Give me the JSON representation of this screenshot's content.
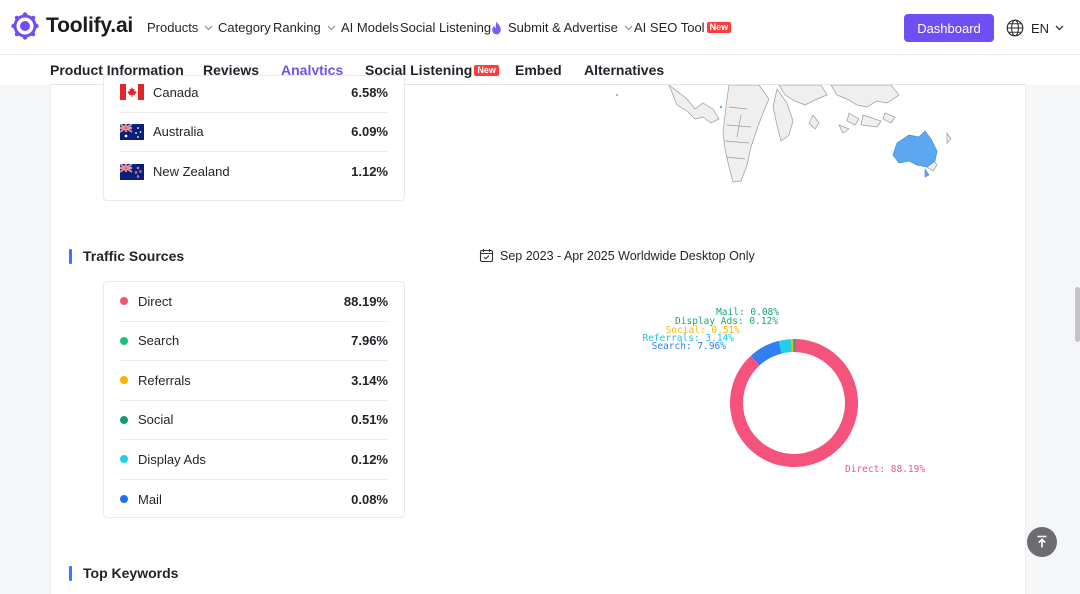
{
  "nav": {
    "logo_text": "Toolify.ai",
    "items": [
      {
        "label": "Products",
        "has_chevron": true
      },
      {
        "label": "Category",
        "has_chevron": false
      },
      {
        "label": "Ranking",
        "has_chevron": true
      },
      {
        "label": "AI Models",
        "has_chevron": false
      },
      {
        "label": "Social Listening",
        "has_chevron": false
      },
      {
        "label": "Submit & Advertise",
        "has_chevron": true,
        "icon": "flame-icon"
      },
      {
        "label": "AI SEO Tool",
        "badge": "New"
      }
    ],
    "dashboard_label": "Dashboard",
    "language": "EN"
  },
  "tabs": [
    {
      "label": "Product Information"
    },
    {
      "label": "Reviews"
    },
    {
      "label": "Analytics",
      "active": true
    },
    {
      "label": "Social Listening",
      "badge": "New"
    },
    {
      "label": "Embed"
    },
    {
      "label": "Alternatives"
    }
  ],
  "countries": [
    {
      "name": "Canada",
      "share": "6.58%",
      "flag": "canada-flag-icon"
    },
    {
      "name": "Australia",
      "share": "6.09%",
      "flag": "australia-flag-icon"
    },
    {
      "name": "New Zealand",
      "share": "1.12%",
      "flag": "new-zealand-flag-icon"
    }
  ],
  "traffic": {
    "title": "Traffic Sources",
    "date_range": "Sep 2023 - Apr 2025 Worldwide Desktop Only",
    "sources": [
      {
        "name": "Direct",
        "share": "88.19%",
        "color": "#f5527c"
      },
      {
        "name": "Search",
        "share": "7.96%",
        "color": "#17c27a"
      },
      {
        "name": "Referrals",
        "share": "3.14%",
        "color": "#f7b500"
      },
      {
        "name": "Social",
        "share": "0.51%",
        "color": "#159a6e"
      },
      {
        "name": "Display Ads",
        "share": "0.12%",
        "color": "#1fcfe8"
      },
      {
        "name": "Mail",
        "share": "0.08%",
        "color": "#1f6ff0"
      }
    ]
  },
  "chart_data": {
    "type": "pie",
    "categories": [
      "Direct",
      "Search",
      "Referrals",
      "Social",
      "Display Ads",
      "Mail"
    ],
    "values": [
      88.19,
      7.96,
      3.14,
      0.51,
      0.12,
      0.08
    ],
    "colors": [
      "#f5527c",
      "#2f7ff3",
      "#21cfe8",
      "#f7b500",
      "#17a673",
      "#17a673"
    ],
    "data_labels": [
      "Direct: 88.19%",
      "Search: 7.96%",
      "Referrals: 3.14%",
      "Social: 0.51%",
      "Display Ads: 0.12%",
      "Mail: 0.08%"
    ],
    "donut": true
  },
  "keywords": {
    "title": "Top Keywords"
  }
}
